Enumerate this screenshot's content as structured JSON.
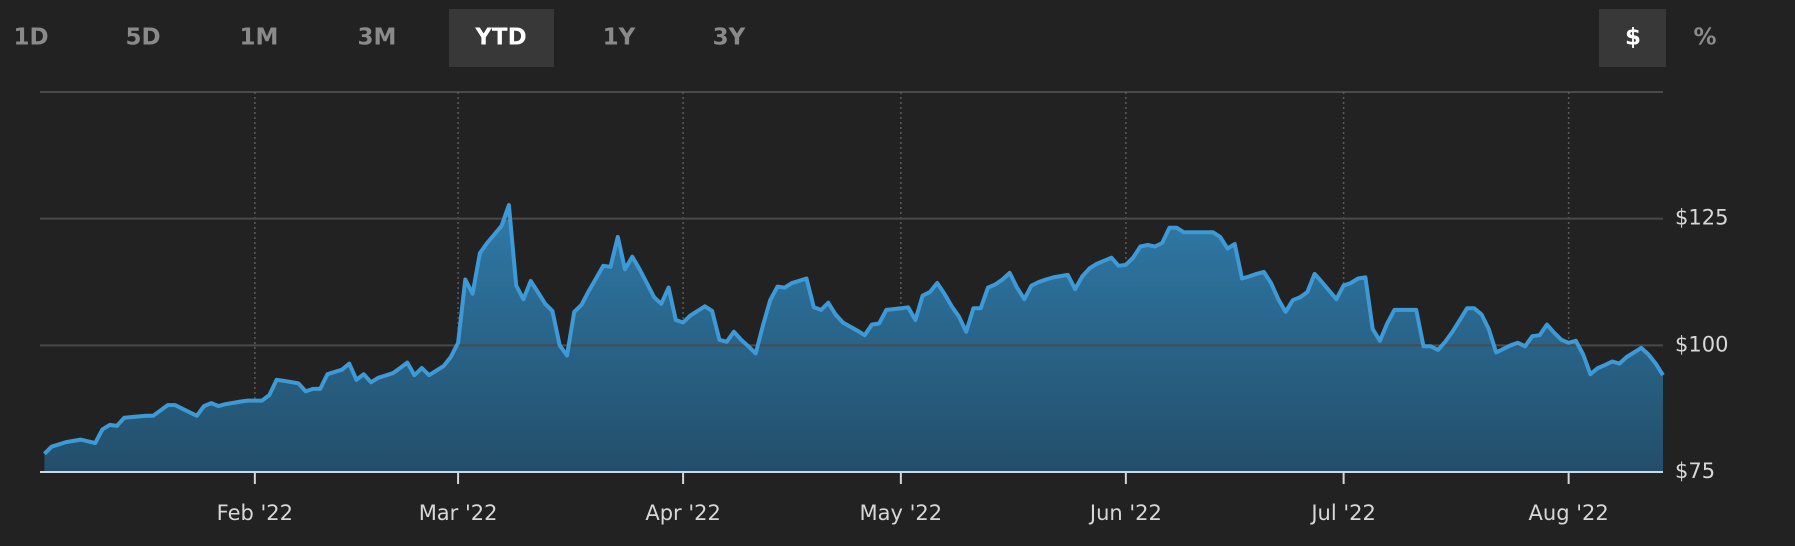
{
  "tabs": [
    "1D",
    "5D",
    "1M",
    "3M",
    "YTD",
    "1Y",
    "3Y"
  ],
  "units": [
    "$",
    "%"
  ],
  "chart_data": {
    "type": "area",
    "color": "#3d9ad6",
    "grid": true,
    "x": [
      3,
      4,
      6,
      8,
      10,
      11,
      12,
      13,
      14,
      17,
      18,
      20,
      21,
      22,
      24,
      25,
      26,
      27,
      28,
      30,
      31,
      33,
      34,
      35,
      36,
      38,
      39,
      40,
      41,
      42,
      44,
      45,
      46,
      47,
      48,
      49,
      51,
      52,
      53,
      54,
      55,
      56,
      58,
      59,
      60,
      61,
      62,
      63,
      64,
      66,
      67,
      68,
      69,
      70,
      71,
      72,
      73,
      74,
      75,
      76,
      77,
      78,
      79,
      80,
      81,
      82,
      83,
      84,
      85,
      86,
      87,
      88,
      89,
      90,
      91,
      92,
      94,
      95,
      96,
      97,
      98,
      99,
      100,
      101,
      102,
      103,
      104,
      105,
      106,
      108,
      109,
      110,
      111,
      112,
      113,
      115,
      116,
      117,
      118,
      119,
      121,
      122,
      123,
      124,
      125,
      126,
      127,
      128,
      129,
      130,
      131,
      132,
      133,
      134,
      135,
      136,
      137,
      138,
      139,
      140,
      141,
      142,
      144,
      145,
      146,
      147,
      148,
      150,
      151,
      152,
      153,
      154,
      155,
      156,
      157,
      158,
      159,
      160,
      162,
      164,
      165,
      166,
      167,
      168,
      169,
      170,
      171,
      172,
      173,
      174,
      175,
      176,
      177,
      178,
      179,
      181,
      182,
      183,
      184,
      185,
      186,
      187,
      188,
      189,
      190,
      192,
      193,
      194,
      195,
      196,
      197,
      198,
      199,
      200,
      201,
      202,
      203,
      204,
      205,
      206,
      207,
      208,
      209,
      210,
      211,
      212,
      213,
      214,
      215,
      216,
      217,
      218,
      219,
      220,
      221,
      223,
      224,
      225,
      226
    ],
    "values": [
      78.6,
      80.0,
      80.9,
      81.4,
      80.7,
      83.4,
      84.3,
      84.1,
      85.7,
      86.1,
      86.1,
      88.2,
      88.2,
      87.5,
      86.1,
      88.0,
      88.6,
      88.0,
      88.4,
      88.9,
      89.1,
      89.1,
      90.2,
      93.2,
      93.0,
      92.5,
      90.9,
      91.4,
      91.4,
      94.3,
      95.2,
      96.4,
      93.2,
      94.3,
      92.7,
      93.6,
      94.5,
      95.5,
      96.6,
      94.1,
      95.5,
      94.1,
      95.9,
      97.7,
      100.5,
      113.0,
      110.2,
      118.2,
      120.2,
      123.6,
      127.7,
      111.8,
      109.1,
      112.7,
      110.5,
      108.2,
      106.8,
      100.0,
      98.0,
      106.6,
      108.0,
      110.7,
      113.2,
      115.7,
      115.5,
      121.4,
      115.0,
      117.5,
      115.0,
      112.3,
      109.5,
      108.2,
      111.4,
      105.0,
      104.5,
      105.9,
      107.7,
      106.8,
      101.1,
      100.7,
      102.7,
      101.1,
      99.8,
      98.4,
      103.9,
      108.9,
      111.6,
      111.4,
      112.3,
      113.2,
      107.5,
      107.0,
      108.4,
      106.1,
      104.5,
      102.9,
      102.0,
      104.1,
      104.3,
      107.0,
      107.3,
      107.5,
      105.0,
      109.8,
      110.5,
      112.3,
      110.2,
      107.7,
      105.7,
      102.7,
      107.3,
      107.3,
      111.4,
      112.0,
      113.0,
      114.3,
      111.4,
      109.1,
      111.8,
      112.5,
      113.0,
      113.4,
      113.9,
      111.1,
      113.6,
      115.2,
      116.1,
      117.3,
      115.7,
      115.9,
      117.3,
      119.5,
      119.8,
      119.5,
      120.2,
      123.2,
      123.2,
      122.3,
      122.3,
      122.3,
      121.4,
      119.1,
      120.0,
      113.2,
      113.6,
      114.1,
      114.5,
      112.3,
      109.1,
      106.6,
      108.9,
      109.5,
      110.5,
      114.1,
      112.5,
      109.1,
      111.8,
      112.3,
      113.2,
      113.4,
      103.2,
      100.9,
      104.3,
      107.0,
      107.0,
      107.0,
      99.8,
      99.8,
      99.1,
      100.7,
      102.7,
      105.0,
      107.3,
      107.3,
      106.1,
      103.2,
      98.6,
      99.3,
      100.0,
      100.5,
      99.8,
      101.8,
      102.0,
      104.1,
      102.5,
      101.1,
      100.5,
      100.9,
      98.2,
      94.3,
      95.5,
      96.1,
      96.8,
      96.4,
      97.7,
      99.5,
      98.2,
      96.4,
      94.1
    ],
    "xlim": [
      2.4,
      226
    ],
    "xticks": [
      {
        "value": 32,
        "label": "Feb '22"
      },
      {
        "value": 60,
        "label": "Mar '22"
      },
      {
        "value": 91,
        "label": "Apr '22"
      },
      {
        "value": 121,
        "label": "May '22"
      },
      {
        "value": 152,
        "label": "Jun '22"
      },
      {
        "value": 182,
        "label": "Jul '22"
      },
      {
        "value": 213,
        "label": "Aug '22"
      }
    ],
    "ylim": [
      75,
      150
    ],
    "yticks": [
      {
        "value": 75,
        "label": "$75"
      },
      {
        "value": 100,
        "label": "$100"
      },
      {
        "value": 125,
        "label": "$125"
      }
    ]
  }
}
